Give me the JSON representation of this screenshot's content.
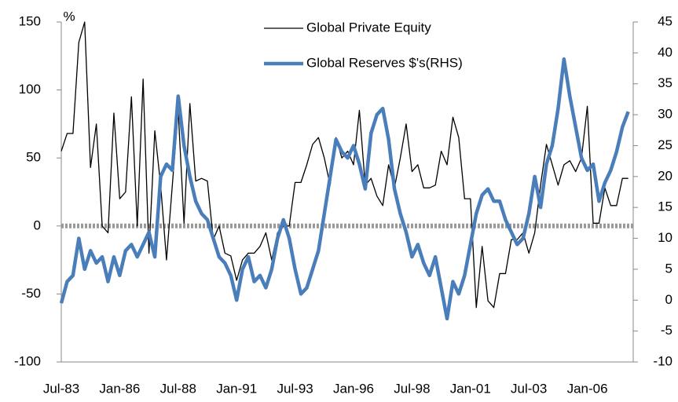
{
  "chart_data": {
    "type": "line",
    "unit_label": "%",
    "categories": [
      "Jul-83",
      null,
      null,
      null,
      null,
      null,
      null,
      null,
      null,
      null,
      "Jan-86",
      null,
      null,
      null,
      null,
      null,
      null,
      null,
      null,
      null,
      "Jul-88",
      null,
      null,
      null,
      null,
      null,
      null,
      null,
      null,
      null,
      "Jan-91",
      null,
      null,
      null,
      null,
      null,
      null,
      null,
      null,
      null,
      "Jul-93",
      null,
      null,
      null,
      null,
      null,
      null,
      null,
      null,
      null,
      "Jan-96",
      null,
      null,
      null,
      null,
      null,
      null,
      null,
      null,
      null,
      "Jul-98",
      null,
      null,
      null,
      null,
      null,
      null,
      null,
      null,
      null,
      "Jan-01",
      null,
      null,
      null,
      null,
      null,
      null,
      null,
      null,
      null,
      "Jul-03",
      null,
      null,
      null,
      null,
      null,
      null,
      null,
      null,
      null,
      "Jan-06",
      null,
      null,
      null,
      null,
      null,
      null,
      null
    ],
    "series": [
      {
        "name": "Global Private Equity",
        "color": "#000000",
        "width": 1.3,
        "values": [
          55,
          68,
          68,
          135,
          150,
          43,
          75,
          0,
          -5,
          83,
          20,
          25,
          95,
          0,
          108,
          -20,
          70,
          30,
          -25,
          30,
          85,
          2,
          90,
          33,
          35,
          33,
          -10,
          0,
          -20,
          -22,
          -40,
          -25,
          -20,
          -20,
          -15,
          -5,
          -25,
          -5,
          0,
          0,
          32,
          32,
          45,
          60,
          65,
          50,
          30,
          65,
          50,
          55,
          45,
          85,
          30,
          35,
          22,
          15,
          45,
          28,
          50,
          75,
          40,
          45,
          28,
          28,
          30,
          55,
          45,
          80,
          65,
          20,
          20,
          -60,
          -15,
          -55,
          -60,
          -35,
          -35,
          -10,
          -10,
          -5,
          -20,
          -5,
          30,
          60,
          45,
          30,
          45,
          48,
          40,
          50,
          88,
          2,
          2,
          28,
          15,
          15,
          35,
          35
        ]
      },
      {
        "name": "Global Reserves $'s(RHS)",
        "color": "#4a7ebb",
        "width": 4.5,
        "axis": "y2",
        "values": [
          -0.5,
          3,
          4,
          10,
          5,
          8,
          6,
          7,
          3,
          7,
          4,
          8,
          9,
          7,
          9,
          11,
          7,
          20,
          22,
          21,
          33,
          25,
          20,
          16,
          14,
          13,
          10,
          7,
          6,
          4,
          0,
          5,
          7,
          3,
          4,
          2,
          5,
          10,
          13,
          10,
          5,
          1,
          2,
          5,
          8,
          14,
          20,
          26,
          24,
          23,
          25,
          22,
          18,
          27,
          30,
          31,
          26,
          18,
          14,
          11,
          7,
          9,
          6,
          4,
          7,
          2,
          -3,
          3,
          1,
          4,
          9,
          14,
          17,
          18,
          16,
          16,
          13,
          11,
          9,
          10,
          14,
          20,
          15,
          22,
          25,
          31,
          39,
          33,
          28,
          23,
          21,
          22,
          16,
          19,
          21,
          24,
          28,
          30.5
        ]
      }
    ],
    "ylim": [
      -100,
      150
    ],
    "yticks": [
      -100,
      -50,
      0,
      50,
      100,
      150
    ],
    "y2lim": [
      -10,
      45
    ],
    "y2ticks": [
      -10,
      -5,
      0,
      5,
      10,
      15,
      20,
      25,
      30,
      35,
      40,
      45
    ],
    "zero_line": true
  }
}
